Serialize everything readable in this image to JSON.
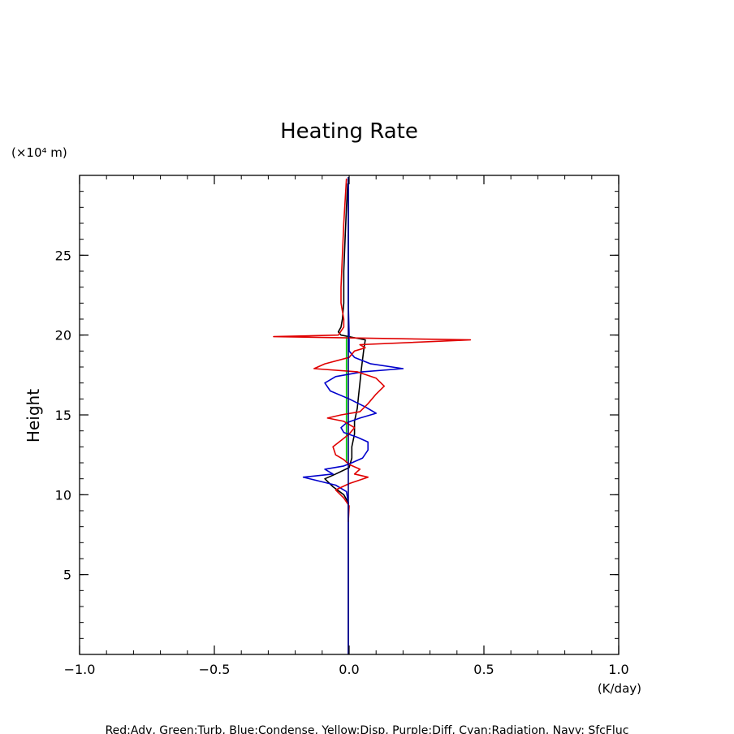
{
  "chart_data": {
    "type": "line",
    "title": "Heating Rate",
    "ylabel": "Height",
    "y_unit": "(×10⁴ m)",
    "x_unit": "(K/day)",
    "xlim": [
      -1.0,
      1.0
    ],
    "ylim": [
      0,
      30
    ],
    "x_ticks": [
      -1.0,
      -0.5,
      0.0,
      0.5,
      1.0
    ],
    "x_tick_labels": [
      "−1.0",
      "−0.5",
      "0.0",
      "0.5",
      "1.0"
    ],
    "y_ticks": [
      5,
      10,
      15,
      20,
      25
    ],
    "y_tick_labels": [
      "5",
      "10",
      "15",
      "20",
      "25"
    ],
    "legend_text": "Red:Adv, Green:Turb, Blue:Condense, Yellow:Disp, Purple:Diff, Cyan:Radiation, Navy: SfcFluc",
    "grid": false,
    "series": [
      {
        "color": "#000000",
        "points": [
          [
            -0.003,
            8.3
          ],
          [
            -0.003,
            9.5
          ],
          [
            -0.02,
            10.0
          ],
          [
            -0.06,
            10.5
          ],
          [
            -0.09,
            11.0
          ],
          [
            -0.05,
            11.3
          ],
          [
            0.0,
            11.7
          ],
          [
            0.01,
            12.3
          ],
          [
            0.01,
            13.0
          ],
          [
            0.02,
            13.8
          ],
          [
            0.02,
            14.6
          ],
          [
            0.03,
            15.4
          ],
          [
            0.035,
            16.2
          ],
          [
            0.04,
            17.0
          ],
          [
            0.045,
            17.8
          ],
          [
            0.05,
            18.5
          ],
          [
            0.055,
            19.2
          ],
          [
            0.06,
            19.7
          ],
          [
            0.03,
            19.8
          ],
          [
            0.0,
            19.9
          ],
          [
            -0.03,
            20.0
          ],
          [
            -0.04,
            20.2
          ],
          [
            -0.03,
            20.5
          ],
          [
            -0.025,
            21.0
          ],
          [
            -0.02,
            22.0
          ],
          [
            -0.02,
            24.0
          ],
          [
            -0.015,
            26.0
          ],
          [
            -0.01,
            28.0
          ],
          [
            -0.005,
            29.5
          ]
        ]
      },
      {
        "color": "#00cc00",
        "points": [
          [
            -0.01,
            12.0
          ],
          [
            -0.01,
            14.0
          ],
          [
            -0.01,
            16.0
          ],
          [
            -0.01,
            18.0
          ],
          [
            -0.01,
            19.9
          ]
        ]
      },
      {
        "color": "#0000cc",
        "points": [
          [
            -0.003,
            0.0
          ],
          [
            -0.003,
            9.5
          ],
          [
            -0.01,
            10.2
          ],
          [
            -0.05,
            10.6
          ],
          [
            -0.17,
            11.1
          ],
          [
            -0.06,
            11.3
          ],
          [
            -0.09,
            11.6
          ],
          [
            -0.02,
            11.8
          ],
          [
            0.01,
            12.0
          ],
          [
            0.05,
            12.3
          ],
          [
            0.07,
            12.8
          ],
          [
            0.07,
            13.3
          ],
          [
            0.03,
            13.6
          ],
          [
            -0.02,
            13.9
          ],
          [
            -0.03,
            14.2
          ],
          [
            -0.01,
            14.5
          ],
          [
            0.04,
            14.8
          ],
          [
            0.1,
            15.1
          ],
          [
            0.06,
            15.5
          ],
          [
            0.0,
            16.0
          ],
          [
            -0.07,
            16.5
          ],
          [
            -0.09,
            17.0
          ],
          [
            -0.05,
            17.4
          ],
          [
            0.05,
            17.7
          ],
          [
            0.2,
            17.9
          ],
          [
            0.08,
            18.2
          ],
          [
            0.02,
            18.6
          ],
          [
            0.0,
            19.0
          ],
          [
            0.0,
            20.0
          ],
          [
            -0.003,
            22.0
          ],
          [
            -0.003,
            25.0
          ],
          [
            -0.003,
            29.8
          ]
        ]
      },
      {
        "color": "#e00000",
        "points": [
          [
            -0.003,
            8.3
          ],
          [
            0.0,
            9.3
          ],
          [
            -0.02,
            9.8
          ],
          [
            -0.05,
            10.3
          ],
          [
            0.0,
            10.7
          ],
          [
            0.07,
            11.1
          ],
          [
            0.02,
            11.3
          ],
          [
            0.04,
            11.6
          ],
          [
            0.0,
            11.9
          ],
          [
            -0.02,
            12.2
          ],
          [
            -0.05,
            12.5
          ],
          [
            -0.06,
            13.0
          ],
          [
            -0.03,
            13.4
          ],
          [
            0.0,
            13.8
          ],
          [
            0.02,
            14.2
          ],
          [
            -0.02,
            14.6
          ],
          [
            -0.08,
            14.8
          ],
          [
            -0.03,
            15.0
          ],
          [
            0.04,
            15.2
          ],
          [
            0.07,
            15.7
          ],
          [
            0.1,
            16.3
          ],
          [
            0.13,
            16.8
          ],
          [
            0.1,
            17.3
          ],
          [
            0.03,
            17.7
          ],
          [
            -0.13,
            17.9
          ],
          [
            -0.09,
            18.2
          ],
          [
            0.0,
            18.6
          ],
          [
            0.02,
            19.0
          ],
          [
            0.06,
            19.2
          ],
          [
            0.04,
            19.4
          ],
          [
            0.45,
            19.7
          ],
          [
            -0.28,
            19.9
          ],
          [
            -0.04,
            20.0
          ],
          [
            -0.02,
            20.5
          ],
          [
            -0.02,
            21.0
          ],
          [
            -0.03,
            22.0
          ],
          [
            -0.03,
            23.0
          ],
          [
            -0.025,
            25.0
          ],
          [
            -0.02,
            27.0
          ],
          [
            -0.01,
            29.8
          ]
        ]
      },
      {
        "color": "#000080",
        "points": [
          [
            -0.003,
            0.0
          ],
          [
            -0.003,
            29.9
          ]
        ]
      }
    ]
  }
}
